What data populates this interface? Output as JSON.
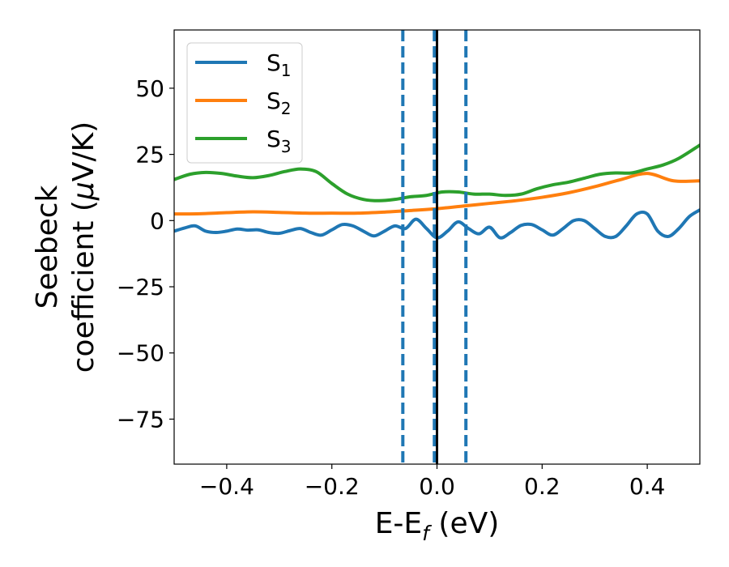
{
  "chart_data": {
    "type": "line",
    "xlabel": {
      "main": "E-E",
      "sub": "f",
      "unit": " (eV)"
    },
    "ylabel": {
      "line1": "Seebeck",
      "line2_a": "coefficient  (",
      "line2_mu": "μ",
      "line2_b": "V/K)"
    },
    "xlim": [
      -0.5,
      0.5
    ],
    "ylim": [
      -92,
      72
    ],
    "xticks": [
      -0.4,
      -0.2,
      0.0,
      0.2,
      0.4
    ],
    "xtick_labels": [
      "−0.4",
      "−0.2",
      "0.0",
      "0.2",
      "0.4"
    ],
    "yticks": [
      -75,
      -50,
      -25,
      0,
      25,
      50
    ],
    "ytick_labels": [
      "−75",
      "−50",
      "−25",
      "0",
      "25",
      "50"
    ],
    "grid": false,
    "legend_position": "top-left",
    "vlines": [
      {
        "x": -0.065,
        "style": "dashed",
        "color": "#1f77b4"
      },
      {
        "x": -0.005,
        "style": "dashed",
        "color": "#1f77b4"
      },
      {
        "x": 0.055,
        "style": "dashed",
        "color": "#1f77b4"
      },
      {
        "x": 0.0,
        "style": "solid",
        "color": "#000000"
      }
    ],
    "series": [
      {
        "name": "S",
        "sub": "1",
        "color": "#1f77b4",
        "x": [
          -0.5,
          -0.48,
          -0.46,
          -0.44,
          -0.42,
          -0.4,
          -0.38,
          -0.36,
          -0.34,
          -0.32,
          -0.3,
          -0.28,
          -0.26,
          -0.24,
          -0.22,
          -0.2,
          -0.18,
          -0.16,
          -0.14,
          -0.12,
          -0.1,
          -0.08,
          -0.06,
          -0.04,
          -0.02,
          0.0,
          0.02,
          0.04,
          0.06,
          0.08,
          0.1,
          0.12,
          0.14,
          0.16,
          0.18,
          0.2,
          0.22,
          0.24,
          0.26,
          0.28,
          0.3,
          0.32,
          0.34,
          0.36,
          0.38,
          0.4,
          0.42,
          0.44,
          0.46,
          0.48,
          0.5
        ],
        "y": [
          -4,
          -2.8,
          -2,
          -4,
          -4.5,
          -4,
          -3.2,
          -3.6,
          -3.5,
          -4.5,
          -4.8,
          -3.8,
          -3,
          -4.5,
          -5.5,
          -3.5,
          -1.5,
          -2,
          -4,
          -5.8,
          -4,
          -2,
          -3,
          0.5,
          -3,
          -6.5,
          -4,
          -0.5,
          -3,
          -5,
          -2.5,
          -6.5,
          -4.5,
          -1.8,
          -1.5,
          -3.5,
          -5.5,
          -3,
          0,
          0,
          -3,
          -6,
          -6,
          -2,
          2.5,
          2.5,
          -4,
          -6,
          -3,
          1.5,
          4
        ]
      },
      {
        "name": "S",
        "sub": "2",
        "color": "#ff7f0e",
        "x": [
          -0.5,
          -0.45,
          -0.4,
          -0.35,
          -0.3,
          -0.25,
          -0.2,
          -0.15,
          -0.1,
          -0.05,
          0.0,
          0.05,
          0.1,
          0.15,
          0.2,
          0.25,
          0.3,
          0.35,
          0.4,
          0.45,
          0.5
        ],
        "y": [
          2.5,
          2.6,
          3,
          3.3,
          3.1,
          2.8,
          2.8,
          2.8,
          3.2,
          3.8,
          4.5,
          5.5,
          6.5,
          7.5,
          8.8,
          10.5,
          12.8,
          15.5,
          17.8,
          15,
          15
        ]
      },
      {
        "name": "S",
        "sub": "3",
        "color": "#2ca02c",
        "x": [
          -0.5,
          -0.47,
          -0.44,
          -0.41,
          -0.38,
          -0.35,
          -0.32,
          -0.29,
          -0.26,
          -0.23,
          -0.2,
          -0.17,
          -0.14,
          -0.11,
          -0.08,
          -0.05,
          -0.02,
          0.01,
          0.04,
          0.07,
          0.1,
          0.13,
          0.16,
          0.19,
          0.22,
          0.25,
          0.28,
          0.31,
          0.34,
          0.37,
          0.4,
          0.43,
          0.46,
          0.5
        ],
        "y": [
          15.5,
          17.5,
          18.2,
          17.8,
          16.8,
          16.2,
          17,
          18.5,
          19.5,
          18.5,
          14,
          10,
          8,
          7.5,
          8,
          9,
          9.5,
          10.8,
          10.8,
          10,
          10,
          9.5,
          10,
          12,
          13.5,
          14.5,
          16,
          17.5,
          18,
          18,
          19.5,
          21,
          23.5,
          28.5
        ]
      }
    ]
  }
}
